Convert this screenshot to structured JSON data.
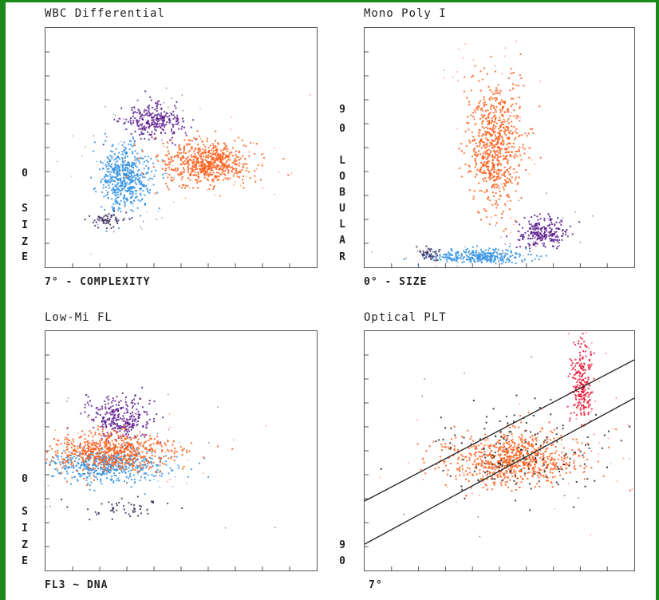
{
  "chart_data": [
    {
      "type": "scatter",
      "title": "WBC Differential",
      "xlabel": "7° - COMPLEXITY",
      "ylabel": "SIZE",
      "y_tick_labels": [
        "0",
        "S",
        "I",
        "Z",
        "E"
      ],
      "xlim": [
        0,
        10
      ],
      "ylim": [
        0,
        10
      ],
      "grid": false,
      "series": [
        {
          "color": "#5a1a8c",
          "center": [
            3.9,
            6.1
          ],
          "spread": [
            0.55,
            0.35
          ],
          "count": 260
        },
        {
          "color": "#2f8fe0",
          "center": [
            2.9,
            3.8
          ],
          "spread": [
            0.45,
            0.65
          ],
          "count": 520
        },
        {
          "color": "#ff5a14",
          "center": [
            5.9,
            4.4
          ],
          "spread": [
            0.85,
            0.45
          ],
          "count": 620
        },
        {
          "color": "#3a2a5a",
          "center": [
            2.2,
            2.0
          ],
          "spread": [
            0.35,
            0.15
          ],
          "count": 60
        }
      ]
    },
    {
      "type": "scatter",
      "title": "Mono Poly I",
      "xlabel": "0° - SIZE",
      "ylabel": "90 LOBULAR",
      "y_tick_labels": [
        "9",
        "0",
        "L",
        "O",
        "B",
        "U",
        "L",
        "A",
        "R"
      ],
      "xlim": [
        0,
        10
      ],
      "ylim": [
        0,
        10
      ],
      "grid": false,
      "series": [
        {
          "color": "#ff5a14",
          "center": [
            4.8,
            5.2
          ],
          "spread": [
            0.5,
            1.3
          ],
          "count": 700
        },
        {
          "color": "#5a1a8c",
          "center": [
            6.6,
            1.5
          ],
          "spread": [
            0.45,
            0.3
          ],
          "count": 220
        },
        {
          "color": "#2f8fe0",
          "center": [
            4.2,
            0.5
          ],
          "spread": [
            0.9,
            0.15
          ],
          "count": 300
        },
        {
          "color": "#3a2a5a",
          "center": [
            2.3,
            0.6
          ],
          "spread": [
            0.2,
            0.15
          ],
          "count": 40
        }
      ]
    },
    {
      "type": "scatter",
      "title": "Low-Mi FL",
      "xlabel": "FL3 ~ DNA",
      "ylabel": "SIZE",
      "y_tick_labels": [
        "0",
        "S",
        "I",
        "Z",
        "E"
      ],
      "xlim": [
        0,
        10
      ],
      "ylim": [
        0,
        10
      ],
      "grid": false,
      "series": [
        {
          "color": "#5a1a8c",
          "center": [
            2.7,
            6.4
          ],
          "spread": [
            0.6,
            0.45
          ],
          "count": 280
        },
        {
          "color": "#2f8fe0",
          "center": [
            2.2,
            4.4
          ],
          "spread": [
            1.1,
            0.35
          ],
          "count": 500
        },
        {
          "color": "#ff5a14",
          "center": [
            2.4,
            5.0
          ],
          "spread": [
            1.2,
            0.4
          ],
          "count": 650
        },
        {
          "color": "#3a2a5a",
          "center": [
            2.9,
            2.6
          ],
          "spread": [
            0.9,
            0.25
          ],
          "count": 50
        }
      ]
    },
    {
      "type": "scatter",
      "title": "Optical PLT",
      "xlabel": "7°",
      "ylabel": "90",
      "y_tick_labels": [
        "9",
        "0"
      ],
      "xlim": [
        0,
        10
      ],
      "ylim": [
        0,
        10
      ],
      "grid": false,
      "series": [
        {
          "color": "#ff5a14",
          "center": [
            5.5,
            4.7
          ],
          "spread": [
            1.2,
            0.55
          ],
          "count": 750
        },
        {
          "color": "#e81432",
          "center": [
            8.0,
            7.8
          ],
          "spread": [
            0.2,
            0.8
          ],
          "count": 220
        },
        {
          "color": "#222222",
          "center": [
            5.7,
            4.9
          ],
          "spread": [
            1.5,
            1.0
          ],
          "count": 160
        }
      ],
      "lines": [
        {
          "x": [
            0,
            10
          ],
          "y": [
            2.9,
            8.8
          ]
        },
        {
          "x": [
            0,
            10
          ],
          "y": [
            1.1,
            7.2
          ]
        }
      ]
    }
  ]
}
